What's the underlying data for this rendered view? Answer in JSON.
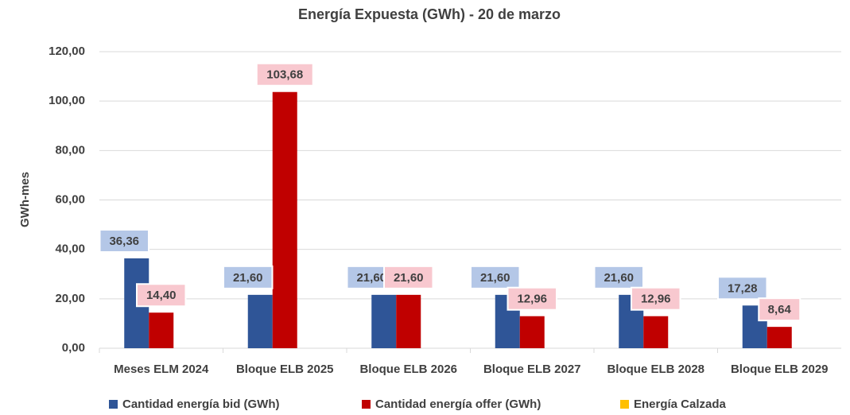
{
  "chart_data": {
    "type": "bar",
    "title": "Energía Expuesta (GWh) - 20 de marzo",
    "y_label": "GWh-mes",
    "categories": [
      "Meses ELM 2024",
      "Bloque ELB 2025",
      "Bloque ELB 2026",
      "Bloque ELB 2027",
      "Bloque ELB 2028",
      "Bloque ELB 2029"
    ],
    "series": [
      {
        "name": "Cantidad energía bid (GWh)",
        "color": "#2f5597",
        "label_color": "#b4c7e7",
        "values": [
          36.36,
          21.6,
          21.6,
          21.6,
          21.6,
          17.28
        ],
        "value_labels": [
          "36,36",
          "21,60",
          "21,60",
          "21,60",
          "21,60",
          "17,28"
        ]
      },
      {
        "name": "Cantidad energía offer (GWh)",
        "color": "#c00000",
        "label_color": "#f8c8cf",
        "values": [
          14.4,
          103.68,
          21.6,
          12.96,
          12.96,
          8.64
        ],
        "value_labels": [
          "14,40",
          "103,68",
          "21,60",
          "12,96",
          "12,96",
          "8,64"
        ]
      },
      {
        "name": "Energía Calzada",
        "color": "#ffc000",
        "values": [
          null,
          null,
          null,
          null,
          null,
          null
        ]
      }
    ],
    "ylim": [
      0,
      120
    ],
    "yticks": [
      {
        "value": 0,
        "label": "0,00"
      },
      {
        "value": 20,
        "label": "20,00"
      },
      {
        "value": 40,
        "label": "40,00"
      },
      {
        "value": 60,
        "label": "60,00"
      },
      {
        "value": 80,
        "label": "80,00"
      },
      {
        "value": 100,
        "label": "100,00"
      },
      {
        "value": 120,
        "label": "120,00"
      }
    ],
    "grid": true
  }
}
